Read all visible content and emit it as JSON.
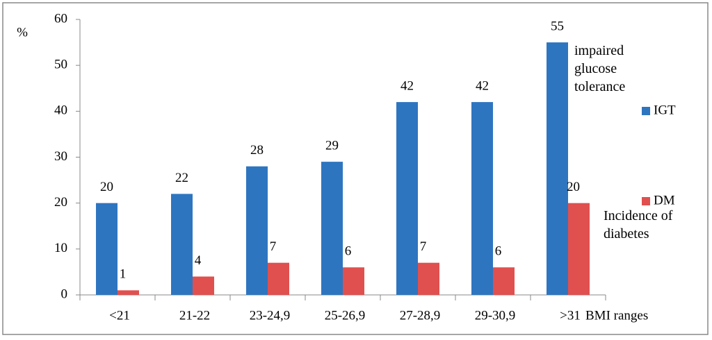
{
  "chart_data": {
    "type": "bar",
    "y_label": "%",
    "x_label": "BMI ranges",
    "categories": [
      "<21",
      "21-22",
      "23-24,9",
      "25-26,9",
      "27-28,9",
      "29-30,9",
      ">31"
    ],
    "series": [
      {
        "name": "IGT",
        "color": "#2e75c0",
        "values": [
          20,
          22,
          28,
          29,
          42,
          42,
          55
        ]
      },
      {
        "name": "DM",
        "color": "#e0504f",
        "values": [
          1,
          4,
          7,
          6,
          7,
          6,
          20
        ]
      }
    ],
    "annotations": [
      "impaired glucose tolerance",
      "Incidence of diabetes"
    ],
    "ylim": [
      0,
      60
    ],
    "yticks": [
      0,
      10,
      20,
      30,
      40,
      50,
      60
    ],
    "legend": "right"
  }
}
